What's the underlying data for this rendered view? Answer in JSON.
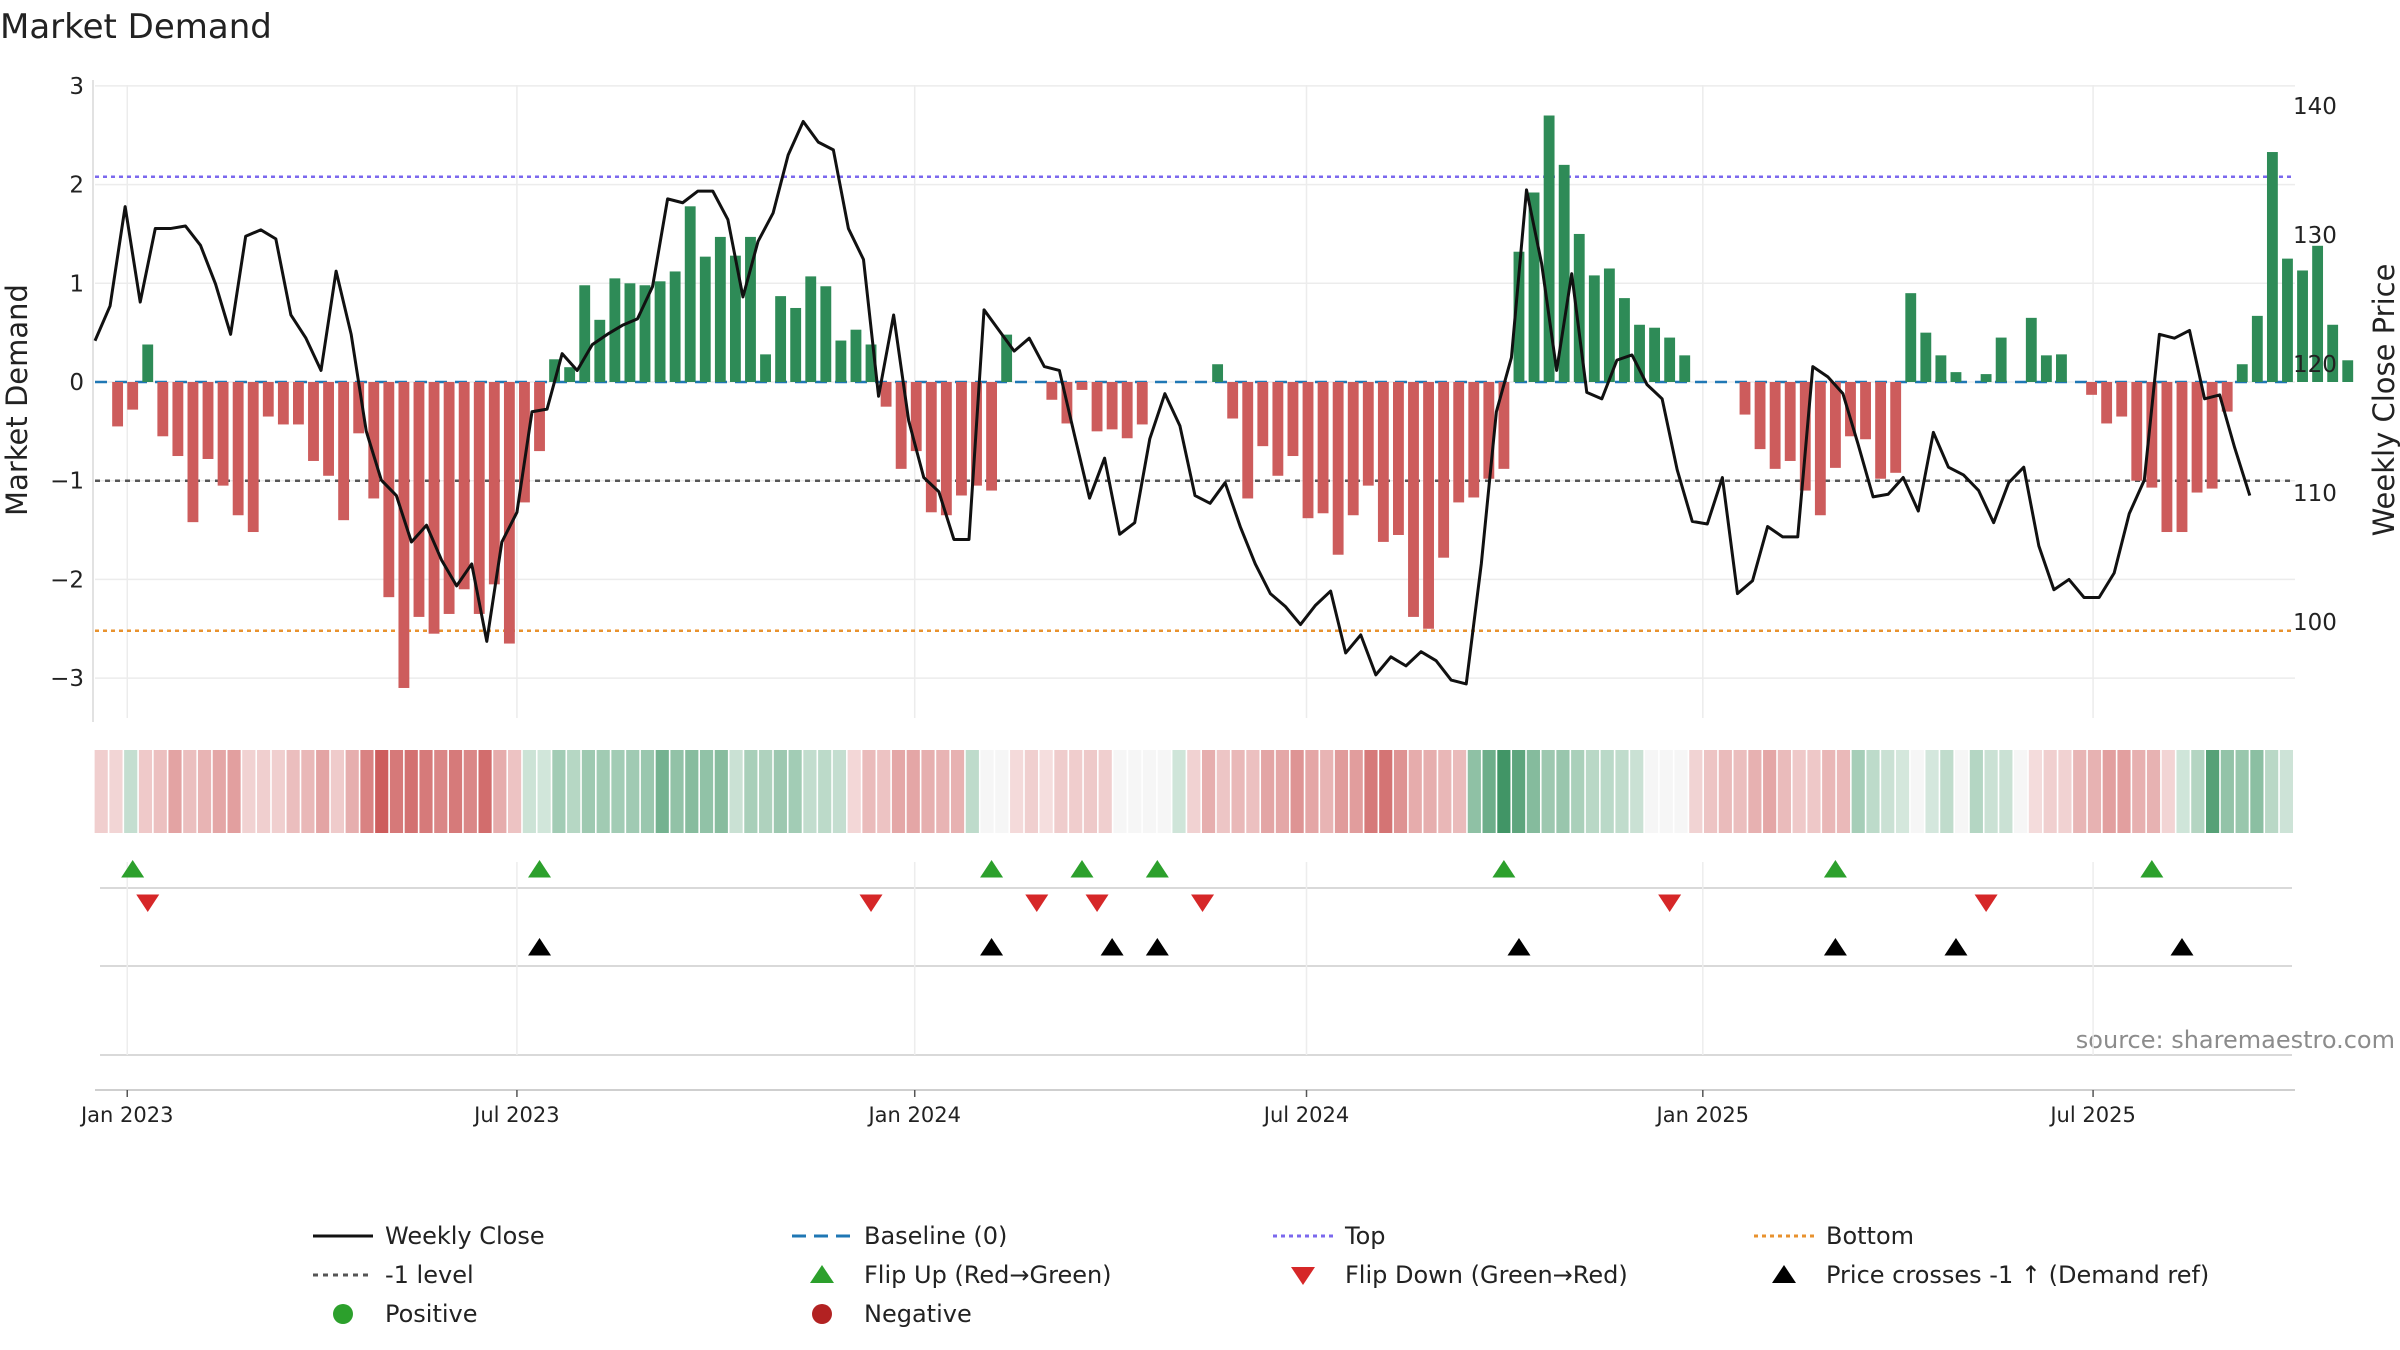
{
  "chart_data": {
    "type": "bar",
    "title": "Market Demand",
    "ylabel": "Market Demand",
    "y2label": "Weekly Close Price",
    "source": "source: sharemaestro.com",
    "ylim": [
      -3.4,
      3.0
    ],
    "y_ticks": [
      3,
      2,
      1,
      0,
      -1,
      -2,
      -3
    ],
    "y2lim": [
      93,
      141
    ],
    "y2_ticks": [
      140,
      130,
      120,
      110,
      100
    ],
    "x_start_week": -1,
    "x_end_week": 145,
    "x_ticks": [
      {
        "week": 1.14,
        "label": "Jan 2023"
      },
      {
        "week": 27.0,
        "label": "Jul 2023"
      },
      {
        "week": 53.4,
        "label": "Jan 2024"
      },
      {
        "week": 79.4,
        "label": "Jul 2024"
      },
      {
        "week": 105.7,
        "label": "Jan 2025"
      },
      {
        "week": 131.6,
        "label": "Jul 2025"
      }
    ],
    "levels": {
      "top": 2.08,
      "bottom": -2.52,
      "minus_one": -1.0,
      "baseline": 0
    },
    "demand": [
      -0.45,
      -0.28,
      0.38,
      -0.55,
      -0.75,
      -1.42,
      -0.78,
      -1.05,
      -1.35,
      -1.52,
      -0.35,
      -0.43,
      -0.43,
      -0.8,
      -0.95,
      -1.4,
      -0.52,
      -1.18,
      -2.18,
      -3.1,
      -2.38,
      -2.55,
      -2.35,
      -2.1,
      -2.35,
      -2.05,
      -2.65,
      -1.22,
      -0.7,
      0.23,
      0.15,
      0.98,
      0.63,
      1.05,
      1.0,
      0.98,
      1.02,
      1.12,
      1.78,
      1.27,
      1.47,
      1.28,
      1.47,
      0.28,
      0.87,
      0.75,
      1.07,
      0.97,
      0.42,
      0.53,
      0.38,
      -0.25,
      -0.88,
      -0.7,
      -1.32,
      -1.35,
      -1.15,
      -1.05,
      -1.1,
      0.48,
      0.0,
      0.0,
      -0.18,
      -0.42,
      -0.08,
      -0.5,
      -0.48,
      -0.57,
      -0.43,
      0.0,
      0.0,
      0.0,
      0.0,
      0.18,
      -0.37,
      -1.18,
      -0.65,
      -0.95,
      -0.75,
      -1.38,
      -1.33,
      -1.75,
      -1.35,
      -1.05,
      -1.62,
      -1.55,
      -2.38,
      -2.5,
      -1.78,
      -1.22,
      -1.17,
      -0.98,
      -0.88,
      1.32,
      1.92,
      2.7,
      2.2,
      1.5,
      1.08,
      1.15,
      0.85,
      0.58,
      0.55,
      0.45,
      0.27,
      0.0,
      0.0,
      0.0,
      -0.33,
      -0.68,
      -0.88,
      -0.8,
      -1.1,
      -1.35,
      -0.87,
      -0.55,
      -0.58,
      -0.98,
      -0.92,
      0.9,
      0.5,
      0.27,
      0.1,
      0.0,
      0.08,
      0.45,
      0.0,
      0.65,
      0.27,
      0.28,
      0.0,
      -0.13,
      -0.42,
      -0.35,
      -1.0,
      -1.07,
      -1.52,
      -1.52,
      -1.12,
      -1.08,
      -0.3,
      0.18,
      0.67,
      2.33,
      1.25,
      1.13,
      1.38,
      0.58,
      0.22
    ],
    "series": [
      {
        "name": "Weekly Close",
        "axis": "right",
        "points": [
          [
            -1,
            121.8
          ],
          [
            0,
            124.5
          ],
          [
            1,
            132.2
          ],
          [
            2,
            124.8
          ],
          [
            3,
            130.5
          ],
          [
            4,
            130.5
          ],
          [
            5,
            130.7
          ],
          [
            6,
            129.2
          ],
          [
            7,
            126.2
          ],
          [
            8,
            122.3
          ],
          [
            9,
            129.9
          ],
          [
            10,
            130.4
          ],
          [
            11,
            129.7
          ],
          [
            12,
            123.8
          ],
          [
            13,
            122
          ],
          [
            14,
            119.5
          ],
          [
            15,
            127.2
          ],
          [
            16,
            122.3
          ],
          [
            17,
            114.8
          ],
          [
            18,
            111
          ],
          [
            19,
            109.8
          ],
          [
            20,
            106.2
          ],
          [
            21,
            107.5
          ],
          [
            22,
            104.8
          ],
          [
            23,
            102.8
          ],
          [
            24,
            104.5
          ],
          [
            25,
            98.5
          ],
          [
            26,
            106.2
          ],
          [
            27,
            108.5
          ],
          [
            28,
            116.3
          ],
          [
            29,
            116.5
          ],
          [
            30,
            120.8
          ],
          [
            31,
            119.5
          ],
          [
            32,
            121.5
          ],
          [
            33,
            122.3
          ],
          [
            34,
            123
          ],
          [
            35,
            123.5
          ],
          [
            36,
            126
          ],
          [
            37,
            132.8
          ],
          [
            38,
            132.5
          ],
          [
            39,
            133.4
          ],
          [
            40,
            133.4
          ],
          [
            41,
            131.2
          ],
          [
            42,
            125.2
          ],
          [
            43,
            129.5
          ],
          [
            44,
            131.7
          ],
          [
            45,
            136.2
          ],
          [
            46,
            138.8
          ],
          [
            47,
            137.2
          ],
          [
            48,
            136.6
          ],
          [
            49,
            130.5
          ],
          [
            50,
            128.1
          ],
          [
            51,
            117.5
          ],
          [
            52,
            123.8
          ],
          [
            53,
            115.6
          ],
          [
            54,
            111.2
          ],
          [
            55,
            110.1
          ],
          [
            56,
            106.4
          ],
          [
            57,
            106.4
          ],
          [
            58,
            124.2
          ],
          [
            59,
            122.6
          ],
          [
            60,
            121
          ],
          [
            61,
            122
          ],
          [
            62,
            119.8
          ],
          [
            63,
            119.5
          ],
          [
            64,
            114.5
          ],
          [
            65,
            109.6
          ],
          [
            66,
            112.7
          ],
          [
            67,
            106.8
          ],
          [
            68,
            107.7
          ],
          [
            69,
            114.2
          ],
          [
            70,
            117.7
          ],
          [
            71,
            115.2
          ],
          [
            72,
            109.8
          ],
          [
            73,
            109.2
          ],
          [
            74,
            110.8
          ],
          [
            75,
            107.4
          ],
          [
            76,
            104.5
          ],
          [
            77,
            102.2
          ],
          [
            78,
            101.2
          ],
          [
            79,
            99.8
          ],
          [
            80,
            101.3
          ],
          [
            81,
            102.4
          ],
          [
            82,
            97.6
          ],
          [
            83,
            99
          ],
          [
            84,
            95.9
          ],
          [
            85,
            97.3
          ],
          [
            86,
            96.6
          ],
          [
            87,
            97.7
          ],
          [
            88,
            97
          ],
          [
            89,
            95.5
          ],
          [
            90,
            95.2
          ],
          [
            91,
            104.5
          ],
          [
            92,
            116.3
          ],
          [
            93,
            120.5
          ],
          [
            94,
            133.5
          ],
          [
            95,
            127.8
          ],
          [
            96,
            119.5
          ],
          [
            97,
            127
          ],
          [
            98,
            117.8
          ],
          [
            99,
            117.3
          ],
          [
            100,
            120.3
          ],
          [
            101,
            120.7
          ],
          [
            102,
            118.4
          ],
          [
            103,
            117.3
          ],
          [
            104,
            111.8
          ],
          [
            105,
            107.8
          ],
          [
            106,
            107.6
          ],
          [
            107,
            111.2
          ],
          [
            108,
            102.2
          ],
          [
            109,
            103.2
          ],
          [
            110,
            107.4
          ],
          [
            111,
            106.6
          ],
          [
            112,
            106.6
          ],
          [
            113,
            119.8
          ],
          [
            114,
            119
          ],
          [
            115,
            117.7
          ],
          [
            116,
            113.8
          ],
          [
            117,
            109.7
          ],
          [
            118,
            109.9
          ],
          [
            119,
            111.2
          ],
          [
            120,
            108.6
          ],
          [
            121,
            114.7
          ],
          [
            122,
            112
          ],
          [
            123,
            111.4
          ],
          [
            124,
            110.2
          ],
          [
            125,
            107.7
          ],
          [
            126,
            110.8
          ],
          [
            127,
            112
          ],
          [
            128,
            105.9
          ],
          [
            129,
            102.5
          ],
          [
            130,
            103.3
          ],
          [
            131,
            101.9
          ],
          [
            132,
            101.9
          ],
          [
            133,
            103.8
          ],
          [
            134,
            108.4
          ],
          [
            135,
            111
          ],
          [
            136,
            122.3
          ],
          [
            137,
            122
          ],
          [
            138,
            122.6
          ],
          [
            139,
            117.3
          ],
          [
            140,
            117.6
          ],
          [
            141,
            113.5
          ],
          [
            142,
            109.8
          ]
        ]
      }
    ],
    "flip_up_weeks": [
      1.5,
      28.5,
      58.5,
      64.5,
      69.5,
      92.5,
      114.5,
      135.5
    ],
    "flip_down_weeks": [
      2.5,
      50.5,
      61.5,
      65.5,
      72.5,
      103.5,
      124.5
    ],
    "price_cross_weeks": [
      28.5,
      58.5,
      66.5,
      69.5,
      93.5,
      114.5,
      122.5,
      137.5
    ],
    "colors": {
      "positive": "#2e8b57",
      "negative": "#cd5c5c",
      "price": "#111111",
      "baseline": "#1f77b4",
      "top": "#7b68ee",
      "bottom": "#e8922e",
      "minus_one": "#555555",
      "flip_up": "#2ca02c",
      "flip_down": "#d62728",
      "cross": "#000000",
      "dot_positive": "#2ca02c",
      "dot_negative": "#b22222"
    },
    "legend": [
      {
        "key": "close",
        "label": "Weekly Close"
      },
      {
        "key": "baseline",
        "label": "Baseline (0)"
      },
      {
        "key": "top",
        "label": "Top"
      },
      {
        "key": "bottom",
        "label": "Bottom"
      },
      {
        "key": "minus_one",
        "label": "-1 level"
      },
      {
        "key": "flip_up",
        "label": "Flip Up (Red→Green)"
      },
      {
        "key": "flip_down",
        "label": "Flip Down (Green→Red)"
      },
      {
        "key": "cross",
        "label": "Price crosses -1 ↑ (Demand ref)"
      },
      {
        "key": "positive",
        "label": "Positive"
      },
      {
        "key": "negative",
        "label": "Negative"
      }
    ]
  }
}
